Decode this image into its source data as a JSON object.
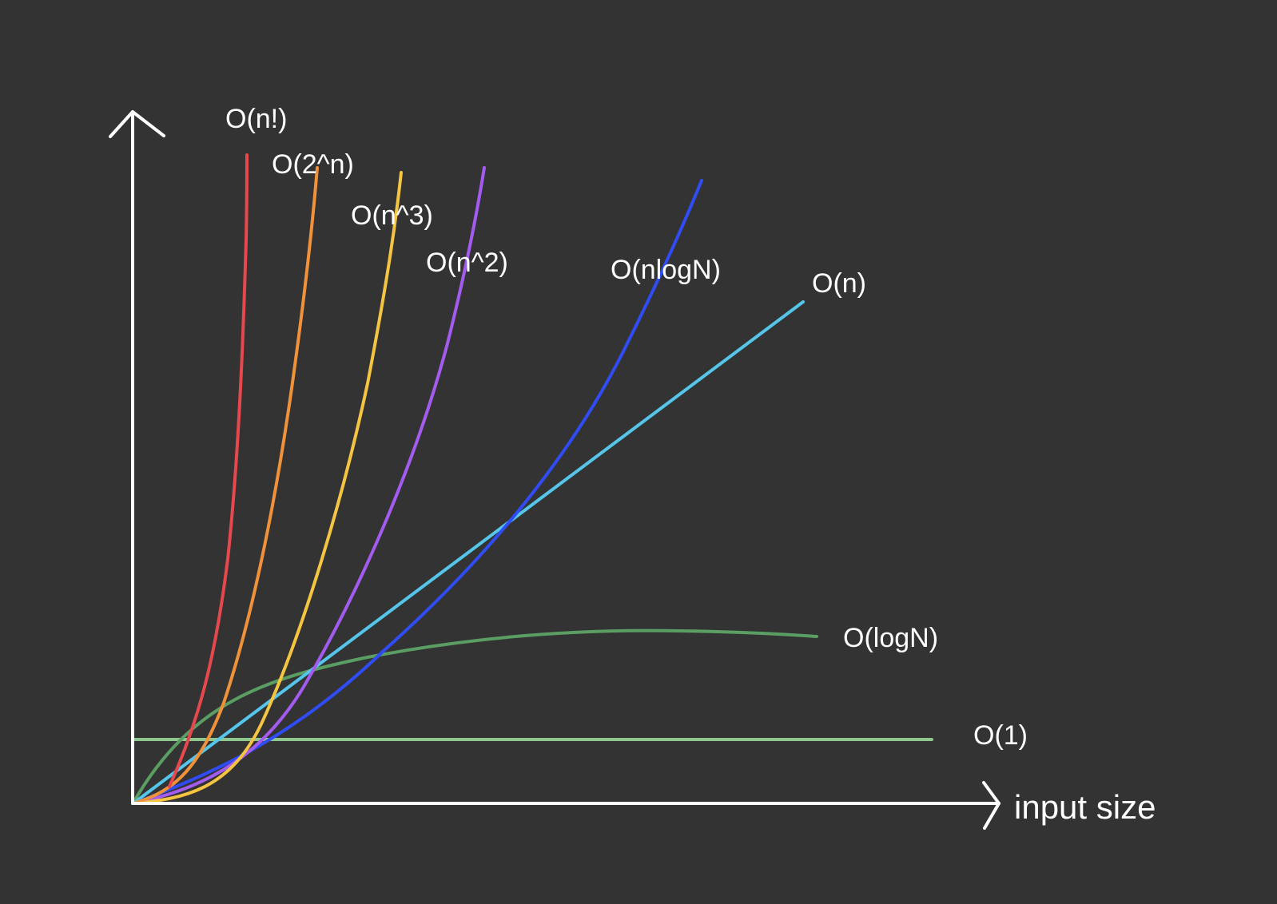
{
  "axis": {
    "x_label": "input size",
    "color": "#ffffff"
  },
  "background": "#333333",
  "curves": [
    {
      "id": "factorial",
      "label": "O(n!)",
      "color": "#e5484d"
    },
    {
      "id": "exp",
      "label": "O(2^n)",
      "color": "#f0923a"
    },
    {
      "id": "cubic",
      "label": "O(n^3)",
      "color": "#f5c542"
    },
    {
      "id": "quadratic",
      "label": "O(n^2)",
      "color": "#a45cf0"
    },
    {
      "id": "nlogn",
      "label": "O(nlogN)",
      "color": "#2f4cf5"
    },
    {
      "id": "linear",
      "label": "O(n)",
      "color": "#55c6ea"
    },
    {
      "id": "log",
      "label": "O(logN)",
      "color": "#5a9e63"
    },
    {
      "id": "const",
      "label": "O(1)",
      "color": "#8fc78f"
    }
  ]
}
